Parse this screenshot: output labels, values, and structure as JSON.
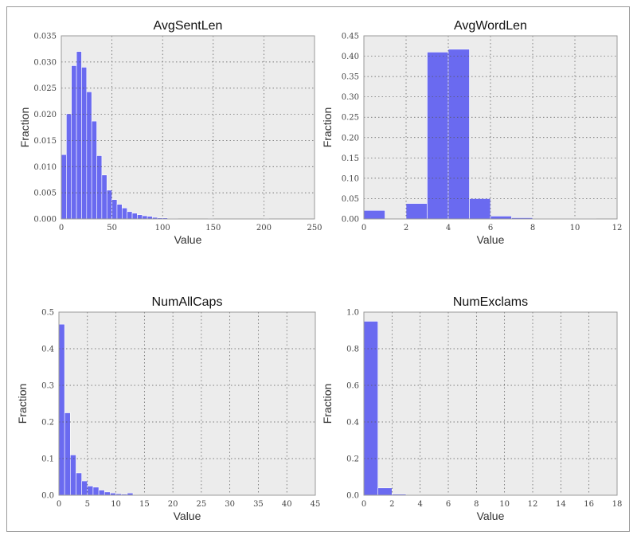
{
  "chart_data": [
    {
      "type": "bar",
      "title": "AvgSentLen",
      "xlabel": "Value",
      "ylabel": "Fraction",
      "xlim": [
        0,
        250
      ],
      "ylim": [
        0,
        0.035
      ],
      "xticks": [
        0,
        50,
        100,
        150,
        200,
        250
      ],
      "yticks": [
        "0.000",
        "0.005",
        "0.010",
        "0.015",
        "0.020",
        "0.025",
        "0.030",
        "0.035"
      ],
      "bin_width": 5,
      "bins": [
        {
          "x": 0,
          "value": 0.0123
        },
        {
          "x": 5,
          "value": 0.0201
        },
        {
          "x": 10,
          "value": 0.0293
        },
        {
          "x": 15,
          "value": 0.032
        },
        {
          "x": 20,
          "value": 0.029
        },
        {
          "x": 25,
          "value": 0.0243
        },
        {
          "x": 30,
          "value": 0.0187
        },
        {
          "x": 35,
          "value": 0.0121
        },
        {
          "x": 40,
          "value": 0.0084
        },
        {
          "x": 45,
          "value": 0.0055
        },
        {
          "x": 50,
          "value": 0.0037
        },
        {
          "x": 55,
          "value": 0.0028
        },
        {
          "x": 60,
          "value": 0.0021
        },
        {
          "x": 65,
          "value": 0.0014
        },
        {
          "x": 70,
          "value": 0.0011
        },
        {
          "x": 75,
          "value": 0.0008
        },
        {
          "x": 80,
          "value": 0.0006
        },
        {
          "x": 85,
          "value": 0.0005
        },
        {
          "x": 90,
          "value": 0.0003
        },
        {
          "x": 95,
          "value": 0.0002
        },
        {
          "x": 100,
          "value": 0.0002
        },
        {
          "x": 105,
          "value": 0.0001
        },
        {
          "x": 110,
          "value": 0.0001
        },
        {
          "x": 145,
          "value": 0.0001
        },
        {
          "x": 200,
          "value": 0.0001
        }
      ],
      "bar_color": "#6a6af0",
      "background": "#ececec",
      "grid": true
    },
    {
      "type": "bar",
      "title": "AvgWordLen",
      "xlabel": "Value",
      "ylabel": "Fraction",
      "xlim": [
        0,
        12
      ],
      "ylim": [
        0,
        0.45
      ],
      "xticks": [
        0,
        2,
        4,
        6,
        8,
        10,
        12
      ],
      "yticks": [
        "0.00",
        "0.05",
        "0.10",
        "0.15",
        "0.20",
        "0.25",
        "0.30",
        "0.35",
        "0.40",
        "0.45"
      ],
      "bin_width": 1,
      "bins": [
        {
          "x": 0,
          "value": 0.021
        },
        {
          "x": 1,
          "value": 0.0
        },
        {
          "x": 2,
          "value": 0.038
        },
        {
          "x": 3,
          "value": 0.41
        },
        {
          "x": 4,
          "value": 0.417
        },
        {
          "x": 5,
          "value": 0.05
        },
        {
          "x": 6,
          "value": 0.007
        },
        {
          "x": 7,
          "value": 0.003
        },
        {
          "x": 8,
          "value": 0.001
        },
        {
          "x": 9,
          "value": 0.001
        },
        {
          "x": 10,
          "value": 0.001
        }
      ],
      "bar_color": "#6a6af0",
      "background": "#ececec",
      "grid": true
    },
    {
      "type": "bar",
      "title": "NumAllCaps",
      "xlabel": "Value",
      "ylabel": "Fraction",
      "xlim": [
        0,
        45
      ],
      "ylim": [
        0,
        0.5
      ],
      "xticks": [
        0,
        5,
        10,
        15,
        20,
        25,
        30,
        35,
        40,
        45
      ],
      "yticks": [
        "0.0",
        "0.1",
        "0.2",
        "0.3",
        "0.4",
        "0.5"
      ],
      "bin_width": 1,
      "bins": [
        {
          "x": 0,
          "value": 0.467
        },
        {
          "x": 1,
          "value": 0.225
        },
        {
          "x": 2,
          "value": 0.11
        },
        {
          "x": 3,
          "value": 0.061
        },
        {
          "x": 4,
          "value": 0.039
        },
        {
          "x": 5,
          "value": 0.025
        },
        {
          "x": 6,
          "value": 0.022
        },
        {
          "x": 7,
          "value": 0.014
        },
        {
          "x": 8,
          "value": 0.009
        },
        {
          "x": 9,
          "value": 0.006
        },
        {
          "x": 10,
          "value": 0.004
        },
        {
          "x": 11,
          "value": 0.003
        },
        {
          "x": 12,
          "value": 0.006
        },
        {
          "x": 13,
          "value": 0.001
        }
      ],
      "bar_color": "#6a6af0",
      "background": "#ececec",
      "grid": true
    },
    {
      "type": "bar",
      "title": "NumExclams",
      "xlabel": "Value",
      "ylabel": "Fraction",
      "xlim": [
        0,
        18
      ],
      "ylim": [
        0,
        1.0
      ],
      "xticks": [
        0,
        2,
        4,
        6,
        8,
        10,
        12,
        14,
        16,
        18
      ],
      "yticks": [
        "0.0",
        "0.2",
        "0.4",
        "0.6",
        "0.8",
        "1.0"
      ],
      "bin_width": 1,
      "bins": [
        {
          "x": 0,
          "value": 0.95
        },
        {
          "x": 1,
          "value": 0.04
        },
        {
          "x": 2,
          "value": 0.006
        },
        {
          "x": 3,
          "value": 0.002
        }
      ],
      "bar_color": "#6a6af0",
      "background": "#ececec",
      "grid": true
    }
  ]
}
